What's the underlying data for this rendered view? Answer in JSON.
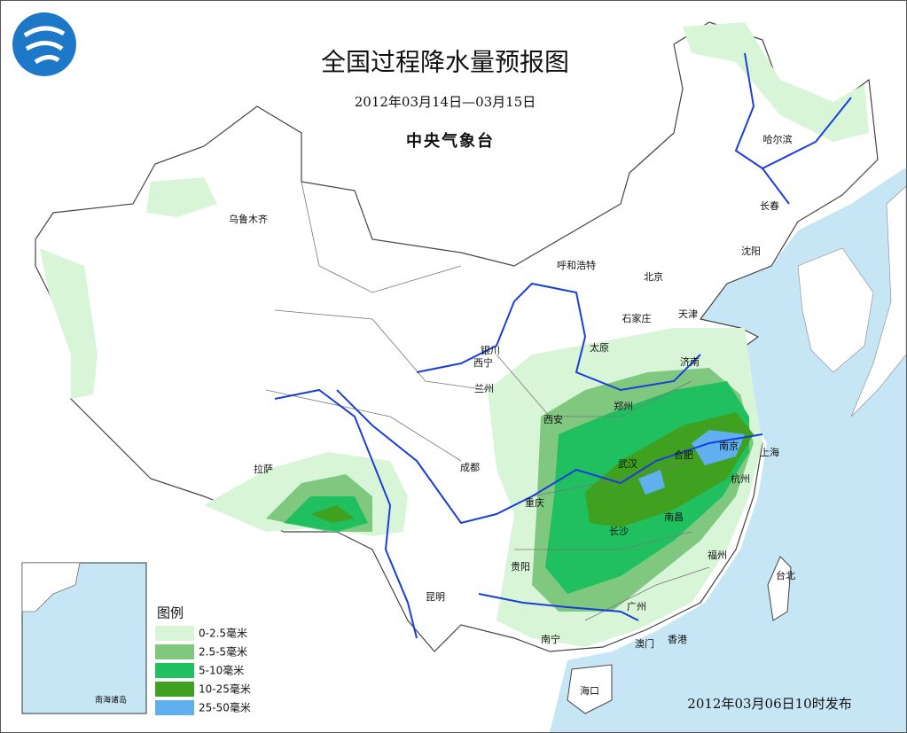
{
  "header": {
    "title": "全国过程降水量预报图",
    "period": "2012年03月14日—03月15日",
    "issuer": "中央气象台"
  },
  "cities": [
    {
      "label": "乌鲁木齐"
    },
    {
      "label": "哈尔滨"
    },
    {
      "label": "长春"
    },
    {
      "label": "沈阳"
    },
    {
      "label": "呼和浩特"
    },
    {
      "label": "北京"
    },
    {
      "label": "天津"
    },
    {
      "label": "石家庄"
    },
    {
      "label": "太原"
    },
    {
      "label": "济南"
    },
    {
      "label": "银川"
    },
    {
      "label": "西宁"
    },
    {
      "label": "兰州"
    },
    {
      "label": "郑州"
    },
    {
      "label": "西安"
    },
    {
      "label": "南京"
    },
    {
      "label": "合肥"
    },
    {
      "label": "上海"
    },
    {
      "label": "武汉"
    },
    {
      "label": "成都"
    },
    {
      "label": "拉萨"
    },
    {
      "label": "杭州"
    },
    {
      "label": "重庆"
    },
    {
      "label": "南昌"
    },
    {
      "label": "长沙"
    },
    {
      "label": "福州"
    },
    {
      "label": "贵阳"
    },
    {
      "label": "台北"
    },
    {
      "label": "昆明"
    },
    {
      "label": "广州"
    },
    {
      "label": "南宁"
    },
    {
      "label": "澳门"
    },
    {
      "label": "香港"
    },
    {
      "label": "海口"
    }
  ],
  "legend": {
    "title": "图例",
    "items": [
      "0-2.5毫米",
      "2.5-5毫米",
      "5-10毫米",
      "10-25毫米",
      "25-50毫米"
    ]
  },
  "inset": {
    "label": "南海诸岛"
  },
  "footer": {
    "release": "2012年03月06日10时发布"
  }
}
